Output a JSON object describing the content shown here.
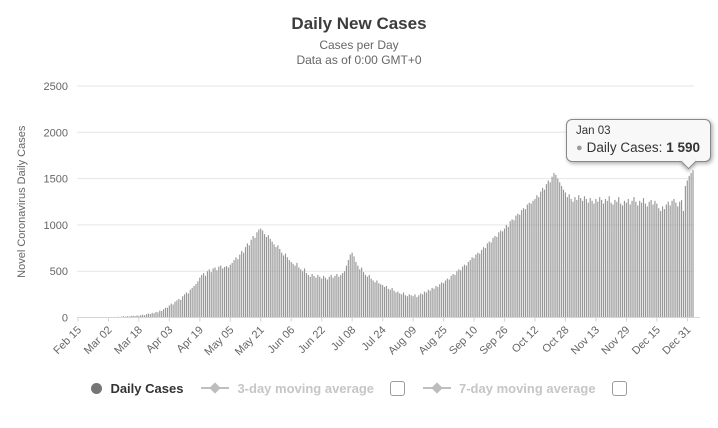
{
  "header": {
    "title": "Daily New Cases",
    "subtitle": "Cases per Day",
    "data_note": "Data as of 0:00 GMT+0"
  },
  "colors": {
    "bar": "#969696",
    "grid": "#e6e6e6",
    "axis_line": "#ccd6eb",
    "title": "#3c3c3c",
    "axis_label": "#666666",
    "legend_active": "#333333",
    "legend_inactive": "#c6c6c6"
  },
  "tooltip": {
    "date": "Jan 03",
    "marker": "●",
    "label": "Daily Cases:",
    "value": "1 590"
  },
  "legend": {
    "items": [
      {
        "label": "Daily Cases",
        "marker": "circle",
        "active": true,
        "checkbox": false
      },
      {
        "label": "3-day moving average",
        "marker": "line-diamond",
        "active": false,
        "checkbox": true
      },
      {
        "label": "7-day moving average",
        "marker": "line-diamond",
        "active": false,
        "checkbox": true
      }
    ]
  },
  "chart_data": {
    "type": "bar",
    "title": "Daily New Cases",
    "xlabel": "",
    "ylabel": "Novel Coronavirus Daily Cases",
    "ylim": [
      0,
      2500
    ],
    "yticks": [
      0,
      500,
      1000,
      1500,
      2000,
      2500
    ],
    "grid": true,
    "legend_position": "bottom",
    "x_start": "Feb 15",
    "x_end": "Jan 03",
    "x_tick_interval_days": 16,
    "x_tick_labels": [
      "Feb 15",
      "Mar 02",
      "Mar 18",
      "Apr 03",
      "Apr 19",
      "May 05",
      "May 21",
      "Jun 06",
      "Jun 22",
      "Jul 08",
      "Jul 24",
      "Aug 09",
      "Aug 25",
      "Sep 10",
      "Sep 26",
      "Oct 12",
      "Oct 28",
      "Nov 13",
      "Nov 29",
      "Dec 15",
      "Dec 31"
    ],
    "series": [
      {
        "name": "Daily Cases",
        "cadence": "daily",
        "values": [
          0,
          0,
          0,
          0,
          0,
          0,
          0,
          0,
          0,
          0,
          0,
          0,
          0,
          0,
          0,
          0,
          0,
          4,
          0,
          6,
          3,
          8,
          5,
          10,
          12,
          9,
          14,
          11,
          16,
          20,
          15,
          22,
          18,
          25,
          30,
          24,
          35,
          42,
          38,
          50,
          45,
          60,
          55,
          75,
          70,
          90,
          105,
          105,
          130,
          150,
          140,
          170,
          185,
          200,
          190,
          230,
          250,
          270,
          260,
          300,
          320,
          340,
          360,
          390,
          430,
          460,
          480,
          450,
          500,
          520,
          490,
          530,
          540,
          510,
          550,
          560,
          530,
          545,
          555,
          540,
          570,
          590,
          620,
          650,
          630,
          680,
          720,
          700,
          760,
          800,
          780,
          840,
          880,
          860,
          920,
          950,
          960,
          940,
          900,
          870,
          890,
          850,
          820,
          790,
          760,
          780,
          740,
          700,
          670,
          690,
          650,
          620,
          600,
          580,
          560,
          590,
          540,
          520,
          500,
          530,
          480,
          460,
          440,
          470,
          450,
          430,
          460,
          440,
          420,
          450,
          430,
          410,
          440,
          460,
          430,
          450,
          470,
          440,
          460,
          480,
          500,
          560,
          620,
          680,
          700,
          660,
          600,
          560,
          520,
          540,
          490,
          460,
          440,
          460,
          420,
          400,
          380,
          400,
          370,
          360,
          350,
          330,
          340,
          310,
          300,
          320,
          290,
          270,
          280,
          260,
          250,
          270,
          240,
          230,
          250,
          240,
          230,
          250,
          220,
          240,
          260,
          250,
          280,
          270,
          300,
          290,
          320,
          310,
          340,
          330,
          360,
          380,
          370,
          400,
          420,
          410,
          450,
          470,
          460,
          500,
          520,
          510,
          550,
          570,
          560,
          600,
          620,
          650,
          640,
          680,
          700,
          690,
          730,
          760,
          750,
          800,
          820,
          810,
          860,
          880,
          870,
          920,
          940,
          930,
          960,
          1000,
          980,
          1040,
          1060,
          1050,
          1100,
          1120,
          1110,
          1160,
          1180,
          1170,
          1220,
          1240,
          1230,
          1260,
          1280,
          1320,
          1300,
          1360,
          1400,
          1380,
          1440,
          1480,
          1460,
          1520,
          1560,
          1540,
          1500,
          1460,
          1420,
          1380,
          1350,
          1300,
          1330,
          1280,
          1250,
          1300,
          1270,
          1320,
          1290,
          1260,
          1310,
          1280,
          1240,
          1290,
          1260,
          1230,
          1280,
          1250,
          1300,
          1270,
          1230,
          1280,
          1260,
          1310,
          1240,
          1220,
          1270,
          1250,
          1300,
          1230,
          1210,
          1260,
          1240,
          1280,
          1220,
          1260,
          1300,
          1250,
          1210,
          1260,
          1240,
          1290,
          1230,
          1200,
          1250,
          1270,
          1220,
          1260,
          1230,
          1180,
          1150,
          1200,
          1170,
          1220,
          1250,
          1210,
          1260,
          1280,
          1240,
          1200,
          1250,
          1270,
          1150,
          1420,
          1480,
          1530,
          1560,
          1590
        ]
      }
    ]
  }
}
